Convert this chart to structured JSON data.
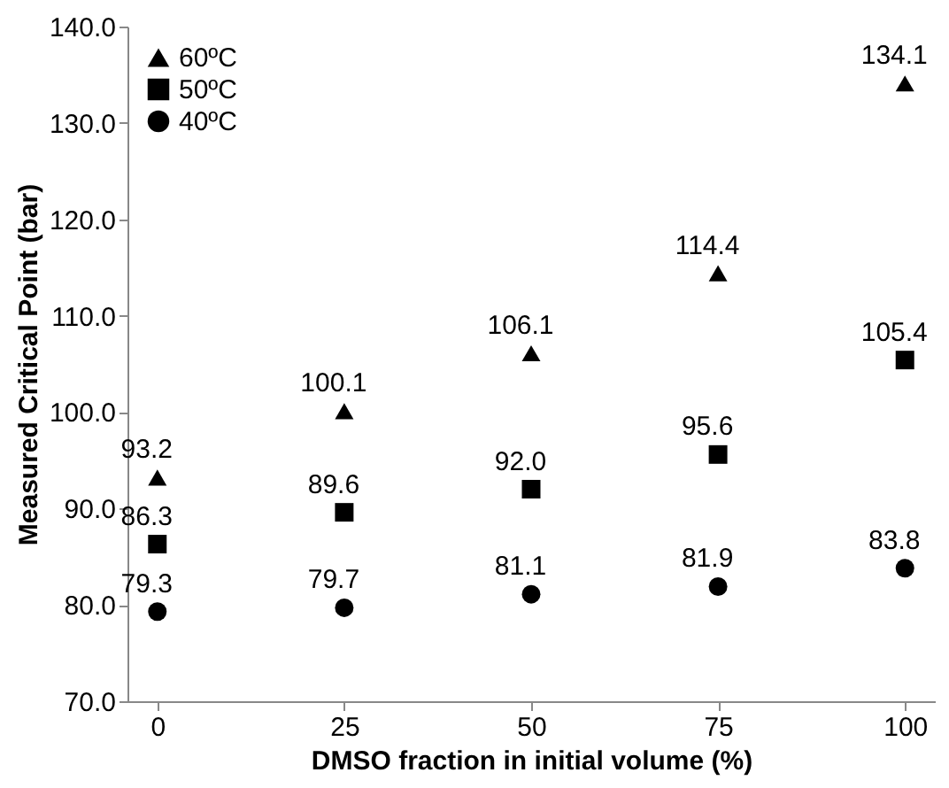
{
  "chart_data": {
    "type": "scatter",
    "xlabel": "DMSO fraction in initial volume (%)",
    "ylabel": "Measured Critical Point (bar)",
    "x": [
      0,
      25,
      50,
      75,
      100
    ],
    "series": [
      {
        "name": "60ºC",
        "color": "#000000",
        "marker": "triangle",
        "values": [
          93.2,
          100.1,
          106.1,
          114.4,
          134.1
        ],
        "value_labels": [
          "93.2",
          "100.1",
          "106.1",
          "114.4",
          "134.1"
        ]
      },
      {
        "name": "50ºC",
        "color": "#000000",
        "marker": "square",
        "values": [
          86.3,
          89.6,
          92.0,
          95.6,
          105.4
        ],
        "value_labels": [
          "86.3",
          "89.6",
          "92.0",
          "95.6",
          "105.4"
        ]
      },
      {
        "name": "40ºC",
        "color": "#000000",
        "marker": "circle",
        "values": [
          79.3,
          79.7,
          81.1,
          81.9,
          83.8
        ],
        "value_labels": [
          "79.3",
          "79.7",
          "81.1",
          "81.9",
          "83.8"
        ]
      }
    ],
    "xlim": [
      -4,
      104
    ],
    "xticks": [
      0,
      25,
      50,
      75,
      100
    ],
    "ylim": [
      70,
      140
    ],
    "yticks": [
      {
        "value": 70,
        "label": "70.0"
      },
      {
        "value": 80,
        "label": "80.0"
      },
      {
        "value": 90,
        "label": "90.0"
      },
      {
        "value": 100,
        "label": "100.0"
      },
      {
        "value": 110,
        "label": "110.0"
      },
      {
        "value": 120,
        "label": "120.0"
      },
      {
        "value": 130,
        "label": "130.0"
      },
      {
        "value": 140,
        "label": "140.0"
      }
    ],
    "legend": "top left",
    "grid": false
  }
}
